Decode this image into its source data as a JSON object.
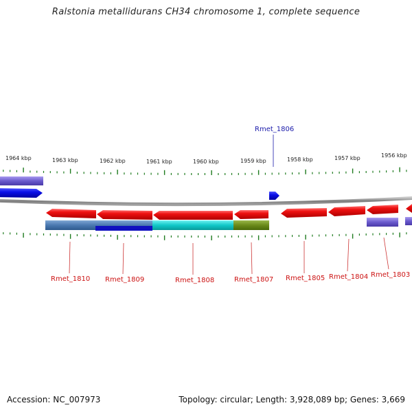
{
  "title": "Ralstonia metallidurans CH34 chromosome 1, complete sequence",
  "footer": {
    "accession": "Accession: NC_007973",
    "stats": "Topology: circular; Length: 3,928,089 bp; Genes: 3,669"
  },
  "colors": {
    "backbone": "#8a8a8a",
    "tick": "#1d7a1d",
    "forward_gene": "#0a10e8",
    "reverse_gene": "#e01010",
    "reverse_label": "#cc1111",
    "forward_label": "#1a1aaa",
    "leader_line": "#cc3333",
    "feature_steel": "#4a78b0",
    "feature_cyan": "#11c8c8",
    "feature_olive": "#6a8a1a",
    "feature_purple": "#6a5acd",
    "feature_blue": "#1010c0"
  },
  "map": {
    "scale_labels": [
      "1964 kbp",
      "1963 kbp",
      "1962 kbp",
      "1961 kbp",
      "1960 kbp",
      "1959 kbp",
      "1958 kbp",
      "1957 kbp",
      "1956 kbp"
    ],
    "genes": [
      {
        "name": "Rmet_1810",
        "strand": "-"
      },
      {
        "name": "Rmet_1809",
        "strand": "-"
      },
      {
        "name": "Rmet_1808",
        "strand": "-"
      },
      {
        "name": "Rmet_1807",
        "strand": "-"
      },
      {
        "name": "Rmet_1806",
        "strand": "+"
      },
      {
        "name": "Rmet_1805",
        "strand": "-"
      },
      {
        "name": "Rmet_1804",
        "strand": "-"
      },
      {
        "name": "Rmet_1803",
        "strand": "-"
      }
    ]
  }
}
